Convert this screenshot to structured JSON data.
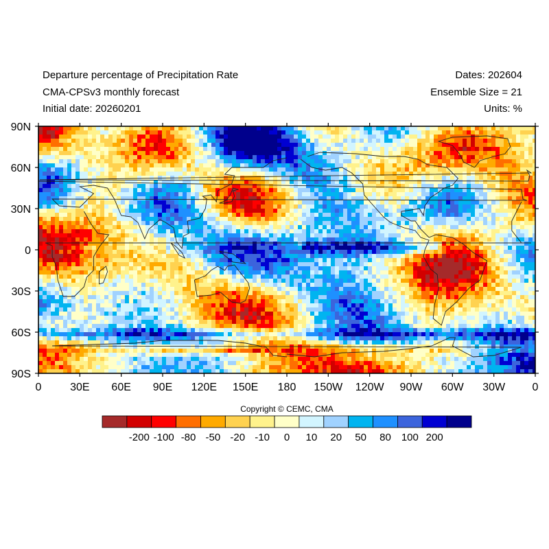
{
  "header": {
    "title": "Departure percentage of Precipitation Rate",
    "model": "CMA-CPSv3 monthly forecast",
    "initial_date": "Initial date: 20260201",
    "dates": "Dates: 202604",
    "ensemble": "Ensemble Size = 21",
    "units": "Units: %"
  },
  "map": {
    "projection": "cylindrical-equidistant",
    "lon_range": [
      0,
      360
    ],
    "lat_range": [
      -90,
      90
    ],
    "lat_ticks": [
      {
        "value": 90,
        "label": "90N"
      },
      {
        "value": 60,
        "label": "60N"
      },
      {
        "value": 30,
        "label": "30N"
      },
      {
        "value": 0,
        "label": "0"
      },
      {
        "value": -30,
        "label": "30S"
      },
      {
        "value": -60,
        "label": "60S"
      },
      {
        "value": -90,
        "label": "90S"
      }
    ],
    "lon_ticks": [
      {
        "value": 0,
        "label": "0"
      },
      {
        "value": 30,
        "label": "30E"
      },
      {
        "value": 60,
        "label": "60E"
      },
      {
        "value": 90,
        "label": "90E"
      },
      {
        "value": 120,
        "label": "120E"
      },
      {
        "value": 150,
        "label": "150E"
      },
      {
        "value": 180,
        "label": "180"
      },
      {
        "value": 210,
        "label": "150W"
      },
      {
        "value": 240,
        "label": "120W"
      },
      {
        "value": 270,
        "label": "90W"
      },
      {
        "value": 300,
        "label": "60W"
      },
      {
        "value": 330,
        "label": "30W"
      },
      {
        "value": 360,
        "label": "0"
      }
    ]
  },
  "colorbar": {
    "colors": [
      "#a52a2a",
      "#d20000",
      "#ff0000",
      "#ff6e00",
      "#ffaa00",
      "#ffd250",
      "#fff28c",
      "#ffffc8",
      "#d2f5ff",
      "#a0d2ff",
      "#00b4f0",
      "#1e90ff",
      "#3c64dc",
      "#0000d2",
      "#00008c"
    ],
    "labels": [
      "-200",
      "-100",
      "-80",
      "-50",
      "-20",
      "-10",
      "0",
      "10",
      "20",
      "50",
      "80",
      "100",
      "200"
    ],
    "cols": [
      "#00008c",
      "#0000d2",
      "#3c64dc",
      "#1e90ff",
      "#00b4f0",
      "#a0d2ff",
      "#d2f5ff",
      "#ffffc8",
      "#fff28c",
      "#ffd250",
      "#ffaa00",
      "#ff6e00",
      "#ff0000",
      "#d20000",
      "#a52a2a"
    ]
  },
  "copyright": "Copyright © CEMC, CMA"
}
